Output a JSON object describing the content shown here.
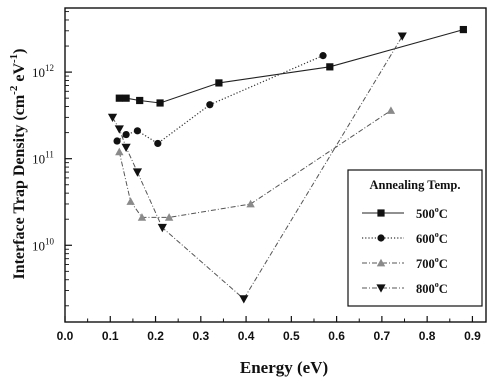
{
  "chart_data": {
    "type": "line",
    "title": "",
    "xlabel": "Energy (eV)",
    "ylabel_main": "Interface Trap Density (cm",
    "ylabel_exp1": "-2",
    "ylabel_mid": " eV",
    "ylabel_exp2": "-1",
    "ylabel_end": ")",
    "x_scale": "linear",
    "y_scale": "log",
    "xlim": [
      0.0,
      0.93
    ],
    "ylim": [
      1300000000.0,
      5500000000000.0
    ],
    "x_ticks": [
      0.0,
      0.1,
      0.2,
      0.3,
      0.4,
      0.5,
      0.6,
      0.7,
      0.8,
      0.9
    ],
    "x_tick_labels": [
      "0.0",
      "0.1",
      "0.2",
      "0.3",
      "0.4",
      "0.5",
      "0.6",
      "0.7",
      "0.8",
      "0.9"
    ],
    "y_tick_base_labels": [
      "10",
      "10",
      "10"
    ],
    "y_tick_exponents": [
      "10",
      "11",
      "12"
    ],
    "y_major_ticks": [
      10000000000.0,
      100000000000.0,
      1000000000000.0
    ],
    "grid": false,
    "legend": {
      "title": "Annealing Temp.",
      "placement": "center-right",
      "degree_symbol": "o"
    },
    "series": [
      {
        "name": "500",
        "unit": "C",
        "marker": "square",
        "line_style": "solid",
        "x": [
          0.12,
          0.135,
          0.165,
          0.21,
          0.34,
          0.585,
          0.88
        ],
        "y": [
          500000000000.0,
          500000000000.0,
          470000000000.0,
          440000000000.0,
          750000000000.0,
          1150000000000.0,
          3100000000000.0
        ]
      },
      {
        "name": "600",
        "unit": "C",
        "marker": "circle",
        "line_style": "dotted",
        "x": [
          0.115,
          0.135,
          0.16,
          0.205,
          0.32,
          0.57
        ],
        "y": [
          160000000000.0,
          190000000000.0,
          210000000000.0,
          150000000000.0,
          420000000000.0,
          1550000000000.0
        ]
      },
      {
        "name": "700",
        "unit": "C",
        "marker": "triangle-up",
        "line_style": "dash-dot",
        "x": [
          0.12,
          0.145,
          0.17,
          0.23,
          0.41,
          0.72
        ],
        "y": [
          120000000000.0,
          32000000000.0,
          21000000000.0,
          21000000000.0,
          30000000000.0,
          360000000000.0
        ]
      },
      {
        "name": "800",
        "unit": "C",
        "marker": "triangle-down",
        "line_style": "dash-dot",
        "x": [
          0.105,
          0.12,
          0.135,
          0.16,
          0.215,
          0.395,
          0.745
        ],
        "y": [
          300000000000.0,
          220000000000.0,
          135000000000.0,
          70000000000.0,
          16000000000.0,
          2400000000.0,
          2600000000000.0
        ]
      }
    ]
  }
}
